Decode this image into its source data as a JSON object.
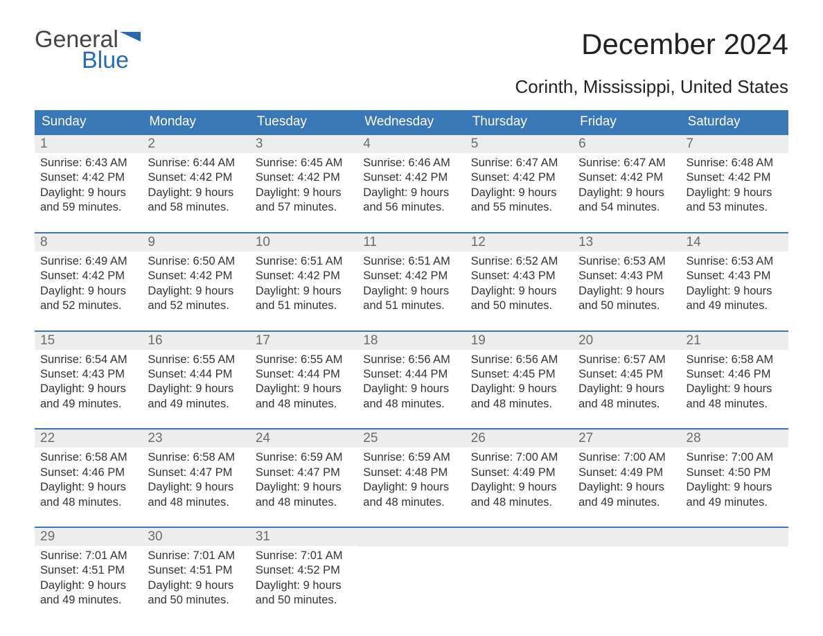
{
  "logo": {
    "word1": "General",
    "word2": "Blue"
  },
  "title": "December 2024",
  "subtitle": "Corinth, Mississippi, United States",
  "colors": {
    "header_bg": "#3a77b7",
    "header_text": "#ffffff",
    "daynum_bg": "#ededed",
    "daynum_text": "#6b6b6b",
    "body_text": "#333333",
    "logo_gray": "#444444",
    "logo_blue": "#2a6bb0",
    "week_border": "#3a77b7",
    "page_bg": "#ffffff"
  },
  "typography": {
    "title_fontsize": 42,
    "subtitle_fontsize": 26,
    "dayhead_fontsize": 19,
    "daynum_fontsize": 19,
    "cell_fontsize": 16.5,
    "font_family": "Arial"
  },
  "day_headers": [
    "Sunday",
    "Monday",
    "Tuesday",
    "Wednesday",
    "Thursday",
    "Friday",
    "Saturday"
  ],
  "weeks": [
    [
      {
        "n": "1",
        "sunrise": "Sunrise: 6:43 AM",
        "sunset": "Sunset: 4:42 PM",
        "d1": "Daylight: 9 hours",
        "d2": "and 59 minutes."
      },
      {
        "n": "2",
        "sunrise": "Sunrise: 6:44 AM",
        "sunset": "Sunset: 4:42 PM",
        "d1": "Daylight: 9 hours",
        "d2": "and 58 minutes."
      },
      {
        "n": "3",
        "sunrise": "Sunrise: 6:45 AM",
        "sunset": "Sunset: 4:42 PM",
        "d1": "Daylight: 9 hours",
        "d2": "and 57 minutes."
      },
      {
        "n": "4",
        "sunrise": "Sunrise: 6:46 AM",
        "sunset": "Sunset: 4:42 PM",
        "d1": "Daylight: 9 hours",
        "d2": "and 56 minutes."
      },
      {
        "n": "5",
        "sunrise": "Sunrise: 6:47 AM",
        "sunset": "Sunset: 4:42 PM",
        "d1": "Daylight: 9 hours",
        "d2": "and 55 minutes."
      },
      {
        "n": "6",
        "sunrise": "Sunrise: 6:47 AM",
        "sunset": "Sunset: 4:42 PM",
        "d1": "Daylight: 9 hours",
        "d2": "and 54 minutes."
      },
      {
        "n": "7",
        "sunrise": "Sunrise: 6:48 AM",
        "sunset": "Sunset: 4:42 PM",
        "d1": "Daylight: 9 hours",
        "d2": "and 53 minutes."
      }
    ],
    [
      {
        "n": "8",
        "sunrise": "Sunrise: 6:49 AM",
        "sunset": "Sunset: 4:42 PM",
        "d1": "Daylight: 9 hours",
        "d2": "and 52 minutes."
      },
      {
        "n": "9",
        "sunrise": "Sunrise: 6:50 AM",
        "sunset": "Sunset: 4:42 PM",
        "d1": "Daylight: 9 hours",
        "d2": "and 52 minutes."
      },
      {
        "n": "10",
        "sunrise": "Sunrise: 6:51 AM",
        "sunset": "Sunset: 4:42 PM",
        "d1": "Daylight: 9 hours",
        "d2": "and 51 minutes."
      },
      {
        "n": "11",
        "sunrise": "Sunrise: 6:51 AM",
        "sunset": "Sunset: 4:42 PM",
        "d1": "Daylight: 9 hours",
        "d2": "and 51 minutes."
      },
      {
        "n": "12",
        "sunrise": "Sunrise: 6:52 AM",
        "sunset": "Sunset: 4:43 PM",
        "d1": "Daylight: 9 hours",
        "d2": "and 50 minutes."
      },
      {
        "n": "13",
        "sunrise": "Sunrise: 6:53 AM",
        "sunset": "Sunset: 4:43 PM",
        "d1": "Daylight: 9 hours",
        "d2": "and 50 minutes."
      },
      {
        "n": "14",
        "sunrise": "Sunrise: 6:53 AM",
        "sunset": "Sunset: 4:43 PM",
        "d1": "Daylight: 9 hours",
        "d2": "and 49 minutes."
      }
    ],
    [
      {
        "n": "15",
        "sunrise": "Sunrise: 6:54 AM",
        "sunset": "Sunset: 4:43 PM",
        "d1": "Daylight: 9 hours",
        "d2": "and 49 minutes."
      },
      {
        "n": "16",
        "sunrise": "Sunrise: 6:55 AM",
        "sunset": "Sunset: 4:44 PM",
        "d1": "Daylight: 9 hours",
        "d2": "and 49 minutes."
      },
      {
        "n": "17",
        "sunrise": "Sunrise: 6:55 AM",
        "sunset": "Sunset: 4:44 PM",
        "d1": "Daylight: 9 hours",
        "d2": "and 48 minutes."
      },
      {
        "n": "18",
        "sunrise": "Sunrise: 6:56 AM",
        "sunset": "Sunset: 4:44 PM",
        "d1": "Daylight: 9 hours",
        "d2": "and 48 minutes."
      },
      {
        "n": "19",
        "sunrise": "Sunrise: 6:56 AM",
        "sunset": "Sunset: 4:45 PM",
        "d1": "Daylight: 9 hours",
        "d2": "and 48 minutes."
      },
      {
        "n": "20",
        "sunrise": "Sunrise: 6:57 AM",
        "sunset": "Sunset: 4:45 PM",
        "d1": "Daylight: 9 hours",
        "d2": "and 48 minutes."
      },
      {
        "n": "21",
        "sunrise": "Sunrise: 6:58 AM",
        "sunset": "Sunset: 4:46 PM",
        "d1": "Daylight: 9 hours",
        "d2": "and 48 minutes."
      }
    ],
    [
      {
        "n": "22",
        "sunrise": "Sunrise: 6:58 AM",
        "sunset": "Sunset: 4:46 PM",
        "d1": "Daylight: 9 hours",
        "d2": "and 48 minutes."
      },
      {
        "n": "23",
        "sunrise": "Sunrise: 6:58 AM",
        "sunset": "Sunset: 4:47 PM",
        "d1": "Daylight: 9 hours",
        "d2": "and 48 minutes."
      },
      {
        "n": "24",
        "sunrise": "Sunrise: 6:59 AM",
        "sunset": "Sunset: 4:47 PM",
        "d1": "Daylight: 9 hours",
        "d2": "and 48 minutes."
      },
      {
        "n": "25",
        "sunrise": "Sunrise: 6:59 AM",
        "sunset": "Sunset: 4:48 PM",
        "d1": "Daylight: 9 hours",
        "d2": "and 48 minutes."
      },
      {
        "n": "26",
        "sunrise": "Sunrise: 7:00 AM",
        "sunset": "Sunset: 4:49 PM",
        "d1": "Daylight: 9 hours",
        "d2": "and 48 minutes."
      },
      {
        "n": "27",
        "sunrise": "Sunrise: 7:00 AM",
        "sunset": "Sunset: 4:49 PM",
        "d1": "Daylight: 9 hours",
        "d2": "and 49 minutes."
      },
      {
        "n": "28",
        "sunrise": "Sunrise: 7:00 AM",
        "sunset": "Sunset: 4:50 PM",
        "d1": "Daylight: 9 hours",
        "d2": "and 49 minutes."
      }
    ],
    [
      {
        "n": "29",
        "sunrise": "Sunrise: 7:01 AM",
        "sunset": "Sunset: 4:51 PM",
        "d1": "Daylight: 9 hours",
        "d2": "and 49 minutes."
      },
      {
        "n": "30",
        "sunrise": "Sunrise: 7:01 AM",
        "sunset": "Sunset: 4:51 PM",
        "d1": "Daylight: 9 hours",
        "d2": "and 50 minutes."
      },
      {
        "n": "31",
        "sunrise": "Sunrise: 7:01 AM",
        "sunset": "Sunset: 4:52 PM",
        "d1": "Daylight: 9 hours",
        "d2": "and 50 minutes."
      },
      null,
      null,
      null,
      null
    ]
  ]
}
